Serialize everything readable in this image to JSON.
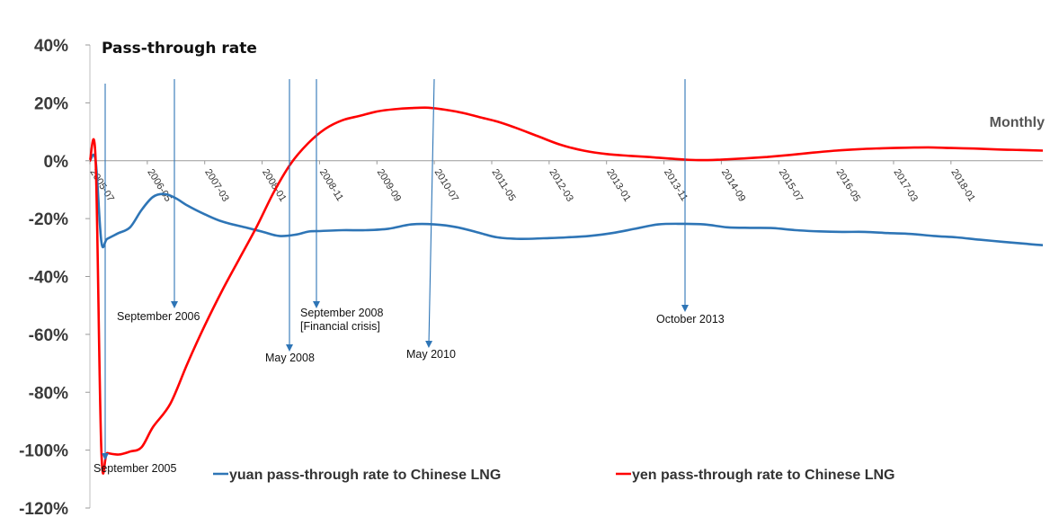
{
  "chart_data": {
    "type": "line",
    "title": "Pass-through rate",
    "frequency_label": "Monthly",
    "ylim": [
      -120,
      40
    ],
    "yticks": [
      40,
      20,
      0,
      -20,
      -40,
      -60,
      -80,
      -100,
      -120
    ],
    "ytick_labels": [
      "40%",
      "20%",
      "0%",
      "-20%",
      "-40%",
      "-60%",
      "-80%",
      "-100%",
      "-120%"
    ],
    "x_range": [
      "2005-07",
      "2019-05"
    ],
    "xticks": [
      "2005-07",
      "2006-05",
      "2007-03",
      "2008-01",
      "2008-11",
      "2009-09",
      "2010-07",
      "2011-05",
      "2012-03",
      "2013-01",
      "2013-11",
      "2014-09",
      "2015-07",
      "2016-05",
      "2017-03",
      "2018-01"
    ],
    "series": [
      {
        "name": "yuan pass-through rate to Chinese LNG",
        "color": "#2e75b6",
        "x": [
          "2005-07",
          "2005-08",
          "2005-09",
          "2005-10",
          "2005-12",
          "2006-02",
          "2006-04",
          "2006-06",
          "2006-08",
          "2006-10",
          "2006-12",
          "2007-03",
          "2007-06",
          "2007-10",
          "2008-01",
          "2008-04",
          "2008-07",
          "2008-09",
          "2008-11",
          "2009-03",
          "2009-07",
          "2009-11",
          "2010-03",
          "2010-07",
          "2010-11",
          "2011-03",
          "2011-06",
          "2011-10",
          "2012-02",
          "2012-06",
          "2012-10",
          "2013-02",
          "2013-06",
          "2013-10",
          "2014-02",
          "2014-06",
          "2014-10",
          "2015-02",
          "2015-06",
          "2015-10",
          "2016-02",
          "2016-06",
          "2016-10",
          "2017-02",
          "2017-06",
          "2017-10",
          "2018-02",
          "2018-06",
          "2018-10",
          "2019-02",
          "2019-05"
        ],
        "values": [
          0,
          0,
          -28,
          -27,
          -25,
          -23,
          -17,
          -12.5,
          -11.5,
          -13,
          -15.5,
          -18.5,
          -21,
          -23,
          -24.5,
          -26,
          -25.5,
          -24.5,
          -24.3,
          -24,
          -24,
          -23.5,
          -22,
          -22,
          -23,
          -25,
          -26.5,
          -27,
          -26.8,
          -26.5,
          -26,
          -25,
          -23.5,
          -22,
          -21.8,
          -22,
          -23,
          -23.2,
          -23.3,
          -24,
          -24.4,
          -24.6,
          -24.6,
          -25,
          -25.3,
          -26,
          -26.5,
          -27.3,
          -28,
          -28.7,
          -29.2
        ]
      },
      {
        "name": "yen pass-through rate to Chinese LNG",
        "color": "#ff0000",
        "x": [
          "2005-07",
          "2005-08",
          "2005-09",
          "2005-10",
          "2005-12",
          "2006-02",
          "2006-04",
          "2006-06",
          "2006-09",
          "2006-12",
          "2007-03",
          "2007-06",
          "2007-09",
          "2007-12",
          "2008-03",
          "2008-06",
          "2008-09",
          "2008-12",
          "2009-03",
          "2009-06",
          "2009-09",
          "2009-12",
          "2010-03",
          "2010-06",
          "2010-09",
          "2010-12",
          "2011-03",
          "2011-06",
          "2011-09",
          "2012-01",
          "2012-05",
          "2012-09",
          "2013-01",
          "2013-05",
          "2013-09",
          "2014-01",
          "2014-05",
          "2014-09",
          "2015-01",
          "2015-05",
          "2015-09",
          "2016-01",
          "2016-05",
          "2016-09",
          "2017-01",
          "2017-05",
          "2017-09",
          "2018-01",
          "2018-05",
          "2018-09",
          "2019-01",
          "2019-05"
        ],
        "values": [
          0,
          0,
          -100.5,
          -101,
          -101.5,
          -100.5,
          -99,
          -92,
          -84,
          -70,
          -57,
          -45,
          -34,
          -23,
          -11,
          -1,
          6,
          11,
          14,
          15.5,
          17,
          17.8,
          18.2,
          18.3,
          17.6,
          16.5,
          15,
          13.5,
          11.5,
          8.5,
          5.5,
          3.5,
          2.3,
          1.7,
          1.2,
          0.6,
          0.2,
          0.4,
          0.8,
          1.3,
          2,
          2.8,
          3.5,
          4,
          4.3,
          4.5,
          4.6,
          4.4,
          4.2,
          3.9,
          3.7,
          3.5
        ]
      }
    ],
    "annotations": [
      {
        "date": "2005-09",
        "text": [
          "September 2005"
        ]
      },
      {
        "date": "2006-09",
        "text": [
          "September 2006"
        ]
      },
      {
        "date": "2008-05",
        "text": [
          "May 2008"
        ]
      },
      {
        "date": "2008-09",
        "text": [
          "September 2008",
          "[Financial crisis]"
        ]
      },
      {
        "date": "2010-05",
        "text": [
          "May 2010"
        ]
      },
      {
        "date": "2013-10",
        "text": [
          "October 2013"
        ]
      }
    ],
    "legend_position": "bottom",
    "grid": false
  }
}
